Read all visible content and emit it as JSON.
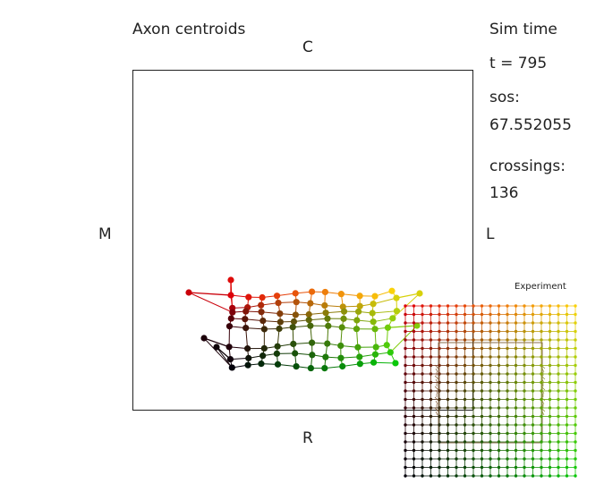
{
  "chart_data": [
    {
      "type": "scatter",
      "title": "Axon centroids",
      "axis_labels": {
        "top": "C",
        "left": "M",
        "right": "L",
        "bottom": "R"
      },
      "grid": false,
      "legend": "none",
      "columns": 11,
      "rows": 8,
      "description_of_color": "x maps black→red→yellow/green; y maps black→green",
      "colors": {
        "frame": "#222222",
        "text": "#222222"
      }
    },
    {
      "type": "scatter",
      "title": "Experiment",
      "columns": 21,
      "rows": 21,
      "grid": false
    }
  ],
  "sim_panel": {
    "title": "Sim time",
    "time_text": "t = 795",
    "sos_label": "sos:",
    "sos_value": "67.552055",
    "crossings_label": "crossings:",
    "crossings_value": "136"
  }
}
